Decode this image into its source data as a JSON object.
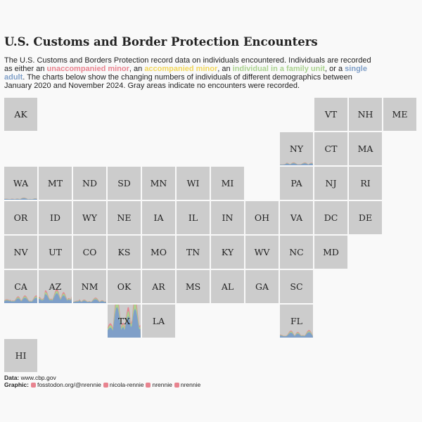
{
  "header": {
    "title": "U.S. Customs and Border Protection Encounters",
    "description": [
      {
        "text": "The U.S. Customs and Borders Protection record data on individuals encountered. Individuals are recorded as either an "
      },
      {
        "text": "unaccompanied minor",
        "color": "#e8838f"
      },
      {
        "text": ", an "
      },
      {
        "text": "accompanied minor",
        "color": "#f1d65a"
      },
      {
        "text": ", an "
      },
      {
        "text": "individual in a family unit",
        "color": "#a9d18e"
      },
      {
        "text": ", or a "
      },
      {
        "text": "single adult",
        "color": "#7f9fc8"
      },
      {
        "text": ". The charts below show the changing numbers of individuals of different demographics between January 2020 and November 2024. Gray areas indicate no encounters were recorded."
      }
    ]
  },
  "states": [
    "AK",
    "VT",
    "NH",
    "ME",
    "NY",
    "CT",
    "MA",
    "WA",
    "MT",
    "ND",
    "SD",
    "MN",
    "WI",
    "MI",
    "PA",
    "NJ",
    "RI",
    "OR",
    "ID",
    "WY",
    "NE",
    "IA",
    "IL",
    "IN",
    "OH",
    "VA",
    "DC",
    "DE",
    "NV",
    "UT",
    "CO",
    "KS",
    "MO",
    "TN",
    "KY",
    "WV",
    "NC",
    "MD",
    "CA",
    "AZ",
    "NM",
    "OK",
    "AR",
    "MS",
    "AL",
    "GA",
    "SC",
    "TX",
    "LA",
    "FL",
    "HI"
  ],
  "footer": {
    "data_label": "Data:",
    "data_source": "www.cbp.gov",
    "graphic_label": "Graphic:",
    "credits": [
      "fosstodon.org/@nrennie",
      "nicola-rennie",
      "nrennie",
      "nrennie"
    ]
  }
}
